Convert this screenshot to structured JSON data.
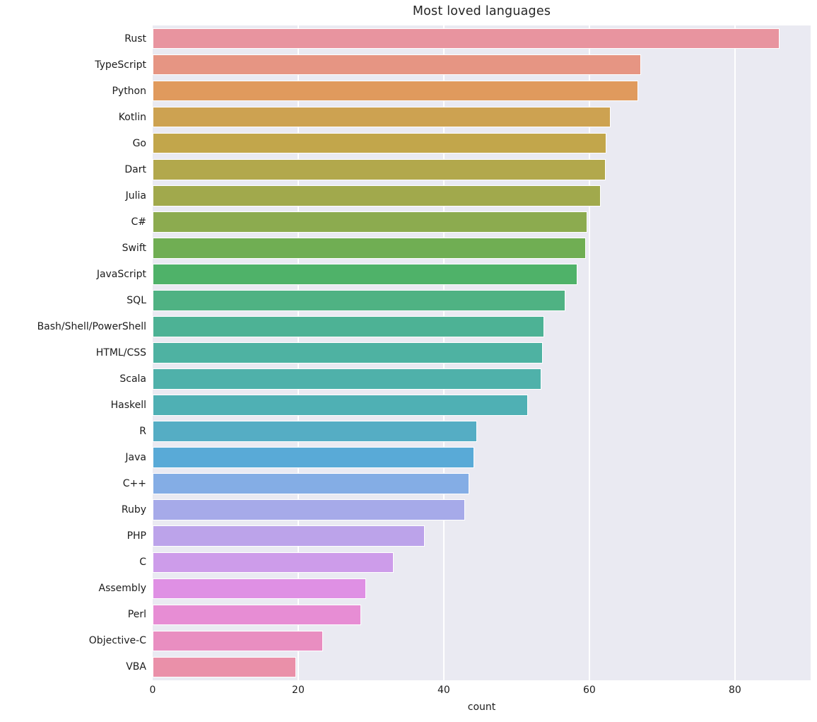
{
  "chart_data": {
    "type": "bar",
    "orientation": "horizontal",
    "title": "Most loved languages",
    "xlabel": "count",
    "ylabel": "",
    "xlim": [
      0,
      90.4
    ],
    "x_ticks": [
      0,
      20,
      40,
      60,
      80
    ],
    "grid": true,
    "legend": null,
    "panel_background": "#eaeaf2",
    "gridline_color": "#ffffff",
    "bar_edge_color": "#ffffff",
    "text_color": "#262626",
    "categories": [
      "Rust",
      "TypeScript",
      "Python",
      "Kotlin",
      "Go",
      "Dart",
      "Julia",
      "C#",
      "Swift",
      "JavaScript",
      "SQL",
      "Bash/Shell/PowerShell",
      "HTML/CSS",
      "Scala",
      "Haskell",
      "R",
      "Java",
      "C++",
      "Ruby",
      "PHP",
      "C",
      "Assembly",
      "Perl",
      "Objective-C",
      "VBA"
    ],
    "values": [
      86.1,
      67.1,
      66.7,
      62.9,
      62.3,
      62.2,
      61.6,
      59.7,
      59.5,
      58.4,
      56.7,
      53.8,
      53.6,
      53.4,
      51.6,
      44.6,
      44.2,
      43.5,
      42.9,
      37.4,
      33.1,
      29.3,
      28.6,
      23.4,
      19.7
    ],
    "bar_colors": [
      "#e8949f",
      "#e69583",
      "#e09a5d",
      "#cda251",
      "#c2a64b",
      "#b2a84c",
      "#a1a94c",
      "#8cab4f",
      "#70ae53",
      "#4fb269",
      "#4fb283",
      "#4db295",
      "#4eb2a2",
      "#4fb1aa",
      "#4fb0b4",
      "#55adc4",
      "#59aad7",
      "#84ade5",
      "#a6aae9",
      "#bca3ea",
      "#cd9cea",
      "#df90e4",
      "#e78dd4",
      "#e98ec1",
      "#ea90a9"
    ]
  }
}
